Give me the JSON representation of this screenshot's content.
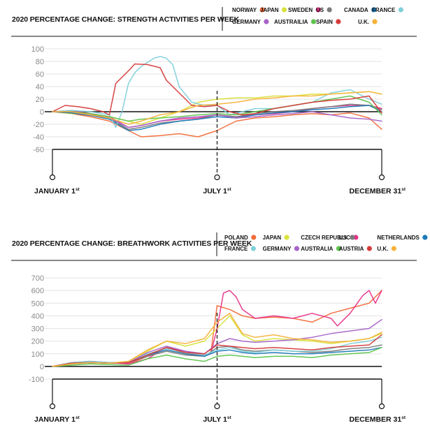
{
  "chart_data": [
    {
      "type": "line",
      "title": "2020 PERCENTAGE CHANGE: STRENGTH ACTIVITIES PER WEEK",
      "xlabel": "",
      "ylabel": "",
      "y_ticks": [
        100,
        80,
        60,
        40,
        20,
        0,
        -20,
        -40,
        -60
      ],
      "ylim": [
        -60,
        100
      ],
      "x_markers": [
        {
          "label": "JANUARY 1",
          "sup": "st",
          "week": 0
        },
        {
          "label": "JULY 1",
          "sup": "st",
          "week": 26
        },
        {
          "label": "DECEMBER 31",
          "sup": "st",
          "week": 52
        }
      ],
      "legend_position": "top-right",
      "series": [
        {
          "name": "NORWAY",
          "color": "#f26b3a",
          "x": [
            0,
            3,
            6,
            9,
            12,
            14,
            17,
            20,
            23,
            26,
            29,
            32,
            35,
            38,
            41,
            44,
            47,
            50,
            52
          ],
          "values": [
            0,
            -3,
            -8,
            -15,
            -30,
            -40,
            -38,
            -35,
            -40,
            -30,
            -15,
            -10,
            -8,
            -5,
            -3,
            -5,
            -2,
            -10,
            -28
          ]
        },
        {
          "name": "JAPAN",
          "color": "#d9e23a",
          "x": [
            0,
            3,
            6,
            9,
            12,
            14,
            17,
            20,
            23,
            26,
            29,
            32,
            35,
            38,
            41,
            44,
            47,
            50,
            52
          ],
          "values": [
            0,
            -3,
            -5,
            -8,
            -15,
            -20,
            -10,
            0,
            15,
            20,
            22,
            22,
            25,
            25,
            28,
            28,
            30,
            32,
            28
          ]
        },
        {
          "name": "SWEDEN",
          "color": "#e8338a",
          "x": [
            0,
            3,
            6,
            9,
            12,
            14,
            17,
            20,
            23,
            26,
            29,
            32,
            35,
            38,
            41,
            44,
            47,
            50,
            52
          ],
          "values": [
            0,
            2,
            -3,
            -8,
            -25,
            -22,
            -15,
            -12,
            -10,
            -5,
            -8,
            -5,
            -3,
            0,
            5,
            8,
            10,
            10,
            5
          ]
        },
        {
          "name": "US",
          "color": "#7a7a7a",
          "x": [
            0,
            3,
            6,
            9,
            12,
            14,
            17,
            20,
            23,
            26,
            29,
            32,
            35,
            38,
            41,
            44,
            47,
            50,
            52
          ],
          "values": [
            0,
            -2,
            -5,
            -10,
            -28,
            -25,
            -18,
            -15,
            -12,
            -5,
            -8,
            -3,
            0,
            2,
            5,
            8,
            12,
            10,
            3
          ]
        },
        {
          "name": "CANADA",
          "color": "#1b79b8",
          "x": [
            0,
            3,
            6,
            9,
            12,
            14,
            17,
            20,
            23,
            26,
            29,
            32,
            35,
            38,
            41,
            44,
            47,
            50,
            52
          ],
          "values": [
            0,
            -2,
            -6,
            -12,
            -30,
            -28,
            -20,
            -15,
            -12,
            -8,
            -10,
            -5,
            -2,
            0,
            3,
            5,
            8,
            10,
            0
          ]
        },
        {
          "name": "FRANCE",
          "color": "#7fd0da",
          "x": [
            0,
            3,
            6,
            9,
            10,
            11,
            12,
            13,
            14,
            16,
            17,
            18,
            19,
            20,
            22,
            24,
            26,
            28,
            30,
            32,
            35,
            38,
            41,
            44,
            47,
            50,
            52
          ],
          "values": [
            0,
            2,
            0,
            -5,
            -25,
            0,
            45,
            62,
            72,
            85,
            88,
            85,
            75,
            40,
            15,
            10,
            10,
            -5,
            0,
            5,
            5,
            10,
            15,
            30,
            35,
            20,
            12
          ]
        },
        {
          "name": "GERMANY",
          "color": "#a763c8",
          "x": [
            0,
            3,
            6,
            9,
            12,
            14,
            17,
            20,
            23,
            26,
            29,
            32,
            35,
            38,
            41,
            44,
            47,
            50,
            52
          ],
          "values": [
            0,
            0,
            -5,
            -10,
            -25,
            -22,
            -15,
            -10,
            -8,
            -5,
            -10,
            -8,
            -5,
            -3,
            0,
            -5,
            -10,
            -12,
            -15
          ]
        },
        {
          "name": "AUSTRAILIA",
          "color": "#5fc44e",
          "x": [
            0,
            3,
            6,
            9,
            12,
            14,
            17,
            20,
            23,
            26,
            29,
            32,
            35,
            38,
            41,
            44,
            47,
            50,
            52
          ],
          "values": [
            0,
            0,
            -3,
            -8,
            -15,
            -12,
            -10,
            -8,
            -5,
            -3,
            -5,
            0,
            5,
            10,
            15,
            20,
            25,
            15,
            -5
          ]
        },
        {
          "name": "SPAIN",
          "color": "#d63a3a",
          "x": [
            0,
            2,
            4,
            6,
            8,
            9,
            10,
            11,
            12,
            13,
            15,
            17,
            18,
            20,
            22,
            24,
            26,
            28,
            30,
            32,
            35,
            38,
            41,
            44,
            47,
            50,
            52
          ],
          "values": [
            0,
            10,
            8,
            5,
            0,
            -5,
            45,
            55,
            65,
            76,
            75,
            70,
            50,
            30,
            10,
            8,
            10,
            0,
            -5,
            -3,
            5,
            10,
            15,
            18,
            20,
            25,
            -2
          ]
        },
        {
          "name": "U.K.",
          "color": "#f6b23a",
          "x": [
            0,
            3,
            6,
            9,
            12,
            14,
            17,
            20,
            23,
            26,
            29,
            32,
            35,
            38,
            41,
            44,
            47,
            50,
            52
          ],
          "values": [
            0,
            0,
            -5,
            -10,
            -20,
            -15,
            -5,
            0,
            10,
            12,
            15,
            20,
            22,
            25,
            25,
            28,
            30,
            32,
            28
          ]
        }
      ]
    },
    {
      "type": "line",
      "title": "2020 PERCENTAGE CHANGE: BREATHWORK ACTIVITIES PER WEEK",
      "xlabel": "",
      "ylabel": "",
      "y_ticks": [
        700,
        600,
        500,
        400,
        300,
        200,
        100,
        0,
        -100
      ],
      "ylim": [
        -100,
        700
      ],
      "x_markers": [
        {
          "label": "JANUARY 1",
          "sup": "st",
          "week": 0
        },
        {
          "label": "JULY 1",
          "sup": "st",
          "week": 26
        },
        {
          "label": "DECEMBER 31",
          "sup": "st",
          "week": 52
        }
      ],
      "legend_position": "top-right",
      "series": [
        {
          "name": "POLAND",
          "color": "#f26b3a",
          "x": [
            0,
            3,
            6,
            9,
            12,
            15,
            18,
            21,
            24,
            25,
            26,
            28,
            30,
            32,
            35,
            38,
            41,
            44,
            47,
            50,
            52
          ],
          "values": [
            0,
            30,
            40,
            30,
            20,
            80,
            150,
            100,
            90,
            100,
            480,
            450,
            400,
            380,
            390,
            380,
            350,
            420,
            460,
            500,
            600
          ]
        },
        {
          "name": "JAPAN",
          "color": "#d9e23a",
          "x": [
            0,
            3,
            6,
            9,
            12,
            15,
            18,
            21,
            24,
            26,
            28,
            30,
            32,
            35,
            38,
            41,
            44,
            47,
            50,
            52
          ],
          "values": [
            0,
            20,
            30,
            25,
            40,
            120,
            200,
            160,
            200,
            300,
            400,
            250,
            200,
            220,
            210,
            200,
            180,
            200,
            220,
            260
          ]
        },
        {
          "name": "CZECH REPUBLIC",
          "color": "#e8338a",
          "x": [
            0,
            3,
            6,
            9,
            12,
            15,
            18,
            21,
            24,
            25,
            26,
            27,
            28,
            29,
            30,
            32,
            35,
            38,
            41,
            44,
            45,
            47,
            49,
            50,
            51,
            52
          ],
          "values": [
            0,
            30,
            40,
            30,
            20,
            60,
            150,
            120,
            90,
            100,
            300,
            580,
            600,
            550,
            450,
            380,
            400,
            380,
            420,
            380,
            320,
            420,
            560,
            600,
            500,
            600
          ]
        },
        {
          "name": "US",
          "color": "#7a7a7a",
          "x": [
            0,
            3,
            6,
            9,
            12,
            15,
            18,
            21,
            24,
            26,
            28,
            30,
            32,
            35,
            38,
            41,
            44,
            47,
            50,
            52
          ],
          "values": [
            0,
            20,
            30,
            25,
            30,
            80,
            120,
            90,
            80,
            150,
            160,
            130,
            120,
            130,
            120,
            110,
            120,
            140,
            150,
            170
          ]
        },
        {
          "name": "NETHERLANDS",
          "color": "#1b79b8",
          "x": [
            0,
            3,
            6,
            9,
            12,
            15,
            18,
            21,
            24,
            26,
            28,
            30,
            32,
            35,
            38,
            41,
            44,
            47,
            50,
            52
          ],
          "values": [
            0,
            25,
            35,
            30,
            30,
            90,
            130,
            100,
            80,
            120,
            130,
            110,
            100,
            110,
            100,
            100,
            110,
            120,
            130,
            150
          ]
        },
        {
          "name": "FRANCE",
          "color": "#7fd0da",
          "x": [
            0,
            3,
            6,
            9,
            12,
            15,
            18,
            21,
            24,
            26,
            28,
            30,
            32,
            35,
            38,
            41,
            44,
            47,
            50,
            52
          ],
          "values": [
            0,
            30,
            40,
            30,
            30,
            100,
            140,
            110,
            90,
            130,
            150,
            120,
            110,
            130,
            120,
            120,
            140,
            180,
            200,
            230
          ]
        },
        {
          "name": "GERMANY",
          "color": "#a763c8",
          "x": [
            0,
            3,
            6,
            9,
            12,
            15,
            18,
            21,
            24,
            26,
            28,
            30,
            32,
            35,
            38,
            41,
            44,
            47,
            50,
            52
          ],
          "values": [
            0,
            20,
            30,
            25,
            30,
            110,
            160,
            120,
            100,
            180,
            220,
            200,
            190,
            200,
            210,
            230,
            260,
            280,
            300,
            370
          ]
        },
        {
          "name": "AUSTRALIA",
          "color": "#5fc44e",
          "x": [
            0,
            3,
            6,
            9,
            12,
            15,
            18,
            21,
            24,
            26,
            28,
            30,
            32,
            35,
            38,
            41,
            44,
            47,
            50,
            52
          ],
          "values": [
            0,
            10,
            20,
            15,
            10,
            60,
            90,
            60,
            40,
            80,
            90,
            80,
            70,
            80,
            80,
            70,
            90,
            100,
            110,
            150
          ]
        },
        {
          "name": "AUSTRIA",
          "color": "#d63a3a",
          "x": [
            0,
            3,
            6,
            9,
            12,
            15,
            18,
            21,
            24,
            26,
            28,
            30,
            32,
            35,
            38,
            41,
            44,
            47,
            50,
            52
          ],
          "values": [
            0,
            25,
            30,
            25,
            30,
            90,
            150,
            110,
            100,
            170,
            160,
            150,
            140,
            150,
            140,
            130,
            150,
            160,
            170,
            250
          ]
        },
        {
          "name": "U.K.",
          "color": "#f6b23a",
          "x": [
            0,
            3,
            6,
            9,
            12,
            15,
            18,
            21,
            24,
            26,
            28,
            30,
            32,
            35,
            38,
            41,
            44,
            47,
            50,
            52
          ],
          "values": [
            0,
            20,
            30,
            25,
            40,
            130,
            200,
            180,
            220,
            350,
            420,
            260,
            230,
            250,
            220,
            210,
            190,
            200,
            220,
            270
          ]
        }
      ]
    }
  ]
}
